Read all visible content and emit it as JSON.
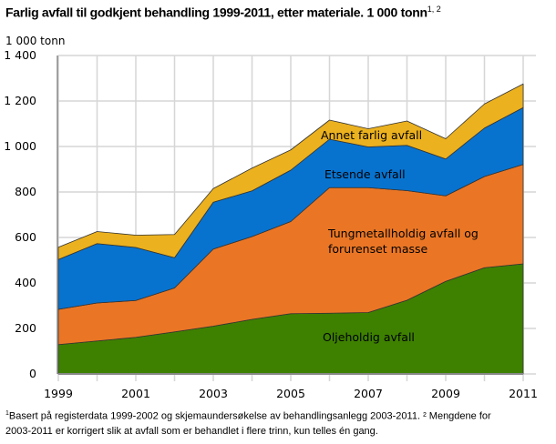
{
  "chart_data": {
    "type": "area",
    "stacked": true,
    "title": "Farlig avfall til godkjent behandling 1999-2011, etter materiale. 1 000 tonn",
    "title_footnote_refs": "1, 2",
    "ylabel": "1 000 tonn",
    "xlabel": "",
    "x": [
      1999,
      2000,
      2001,
      2002,
      2003,
      2004,
      2005,
      2006,
      2007,
      2008,
      2009,
      2010,
      2011
    ],
    "xticks": [
      "1999",
      "2001",
      "2003",
      "2005",
      "2007",
      "2009",
      "2011"
    ],
    "ylim": [
      0,
      1400
    ],
    "yticks": [
      "0",
      "200",
      "400",
      "600",
      "800",
      "1 000",
      "1 200",
      "1 400"
    ],
    "grid": true,
    "legend": "inline labels",
    "series": [
      {
        "name": "Oljeholdig avfall",
        "color": "#3e8100",
        "values": [
          129,
          145,
          161,
          185,
          210,
          240,
          265,
          267,
          270,
          324,
          407,
          467,
          484
        ]
      },
      {
        "name": "Tungmetallholdig avfall og forurenset masse",
        "color": "#ea7625",
        "values": [
          155,
          167,
          162,
          193,
          339,
          364,
          405,
          552,
          549,
          482,
          376,
          401,
          437
        ]
      },
      {
        "name": "Etsende avfall",
        "color": "#0873cf",
        "values": [
          219,
          261,
          233,
          133,
          206,
          201,
          226,
          213,
          179,
          199,
          162,
          213,
          250
        ]
      },
      {
        "name": "Annet farlig avfall",
        "color": "#ebb11f",
        "values": [
          54,
          53,
          54,
          102,
          60,
          100,
          89,
          84,
          80,
          107,
          89,
          106,
          104
        ]
      }
    ]
  },
  "label_lines": {
    "tung_1": "Tungmetallholdig avfall og",
    "tung_2": "forurenset masse"
  },
  "footnote": {
    "line1": "Basert på registerdata 1999-2002 og skjemaundersøkelse av behandlingsanlegg 2003-2011. ² Mengdene for",
    "line2": "2003-2011 er korrigert slik at avfall som er behandlet i flere trinn, kun telles én gang."
  }
}
